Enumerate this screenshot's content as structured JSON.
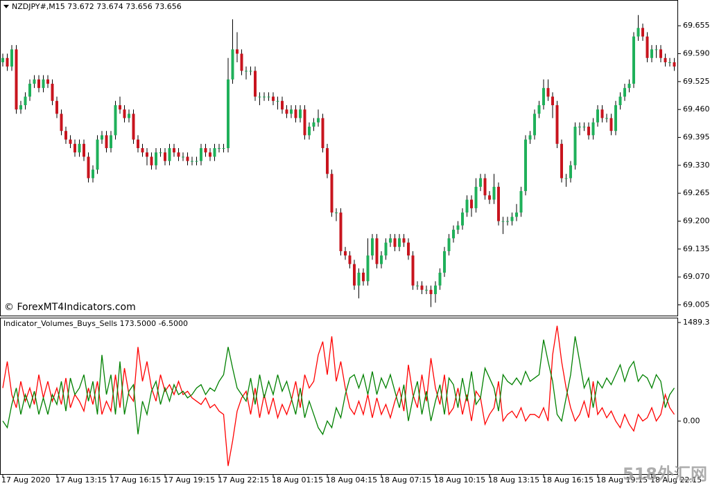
{
  "chart_data": [
    {
      "type": "candlestick",
      "title": "NZDJPY#,M15  73.672 73.674 73.656 73.656",
      "annotation": "© ForexMT4Indicators.com",
      "open": [
        69.57,
        69.58,
        69.56,
        69.6,
        69.46,
        69.47,
        69.49,
        69.52,
        69.53,
        69.51,
        69.53,
        69.52,
        69.48,
        69.45,
        69.41,
        69.39,
        69.38,
        69.36,
        69.38,
        69.35,
        69.3,
        69.32,
        69.39,
        69.4,
        69.37,
        69.4,
        69.47,
        69.46,
        69.44,
        69.45,
        69.39,
        69.37,
        69.36,
        69.35,
        69.33,
        69.36,
        69.36,
        69.34,
        69.37,
        69.36,
        69.35,
        69.35,
        69.34,
        69.34,
        69.34,
        69.37,
        69.36,
        69.35,
        69.37,
        69.37,
        69.37,
        69.53,
        69.6,
        69.59,
        69.55,
        69.55,
        69.55,
        69.49,
        69.49,
        69.49,
        69.49,
        69.48,
        69.48,
        69.46,
        69.45,
        69.46,
        69.44,
        69.46,
        69.4,
        69.42,
        69.43,
        69.44,
        69.37,
        69.31,
        69.22,
        69.22,
        69.13,
        69.12,
        69.1,
        69.05,
        69.08,
        69.06,
        69.12,
        69.16,
        69.1,
        69.12,
        69.15,
        69.16,
        69.14,
        69.16,
        69.15,
        69.12,
        69.05,
        69.05,
        69.04,
        69.04,
        69.03,
        69.05,
        69.08,
        69.13,
        69.16,
        69.18,
        69.19,
        69.22,
        69.25,
        69.23,
        69.28,
        69.3,
        69.26,
        69.25,
        69.28,
        69.2,
        69.2,
        69.2,
        69.21,
        69.22,
        69.27,
        69.39,
        69.4,
        69.45,
        69.47,
        69.51,
        69.49,
        69.47,
        69.38,
        69.3,
        69.3,
        69.33,
        69.42,
        69.42,
        69.42,
        69.4,
        69.43,
        69.46,
        69.44,
        69.44,
        69.41,
        69.47,
        69.49,
        69.51,
        69.52,
        69.63,
        69.65,
        69.63,
        69.58,
        69.6,
        69.6,
        69.58,
        69.57,
        69.57
      ],
      "high": [
        69.59,
        69.59,
        69.61,
        69.61,
        69.48,
        69.5,
        69.53,
        69.54,
        69.54,
        69.54,
        69.54,
        69.53,
        69.49,
        69.46,
        69.42,
        69.4,
        69.39,
        69.39,
        69.39,
        69.36,
        69.33,
        69.4,
        69.41,
        69.41,
        69.41,
        69.48,
        69.49,
        69.47,
        69.46,
        69.46,
        69.4,
        69.38,
        69.37,
        69.36,
        69.37,
        69.37,
        69.37,
        69.38,
        69.38,
        69.37,
        69.36,
        69.36,
        69.35,
        69.35,
        69.38,
        69.38,
        69.37,
        69.38,
        69.38,
        69.38,
        69.58,
        69.67,
        69.64,
        69.6,
        69.56,
        69.56,
        69.56,
        69.5,
        69.5,
        69.5,
        69.5,
        69.49,
        69.49,
        69.47,
        69.47,
        69.47,
        69.47,
        69.47,
        69.43,
        69.44,
        69.46,
        69.45,
        69.38,
        69.32,
        69.23,
        69.23,
        69.14,
        69.13,
        69.11,
        69.09,
        69.09,
        69.16,
        69.17,
        69.17,
        69.13,
        69.16,
        69.17,
        69.17,
        69.17,
        69.17,
        69.16,
        69.13,
        69.06,
        69.06,
        69.05,
        69.05,
        69.06,
        69.09,
        69.14,
        69.17,
        69.19,
        69.2,
        69.23,
        69.26,
        69.26,
        69.3,
        69.31,
        69.31,
        69.27,
        69.31,
        69.29,
        69.21,
        69.21,
        69.22,
        69.24,
        69.28,
        69.4,
        69.41,
        69.46,
        69.48,
        69.53,
        69.53,
        69.5,
        69.48,
        69.39,
        69.31,
        69.34,
        69.43,
        69.43,
        69.43,
        69.43,
        69.44,
        69.47,
        69.47,
        69.45,
        69.45,
        69.48,
        69.5,
        69.52,
        69.53,
        69.64,
        69.68,
        69.66,
        69.64,
        69.61,
        69.61,
        69.61,
        69.59,
        69.58,
        69.58
      ],
      "low": [
        69.56,
        69.55,
        69.55,
        69.45,
        69.45,
        69.46,
        69.48,
        69.51,
        69.5,
        69.5,
        69.51,
        69.47,
        69.44,
        69.4,
        69.38,
        69.37,
        69.35,
        69.35,
        69.34,
        69.29,
        69.29,
        69.31,
        69.38,
        69.36,
        69.36,
        69.39,
        69.45,
        69.43,
        69.43,
        69.38,
        69.36,
        69.35,
        69.33,
        69.32,
        69.32,
        69.35,
        69.33,
        69.33,
        69.35,
        69.34,
        69.34,
        69.33,
        69.33,
        69.33,
        69.33,
        69.35,
        69.34,
        69.34,
        69.36,
        69.36,
        69.36,
        69.52,
        69.57,
        69.54,
        69.53,
        69.54,
        69.48,
        69.47,
        69.48,
        69.48,
        69.47,
        69.46,
        69.45,
        69.44,
        69.44,
        69.43,
        69.43,
        69.39,
        69.39,
        69.41,
        69.42,
        69.36,
        69.3,
        69.21,
        69.2,
        69.12,
        69.11,
        69.09,
        69.04,
        69.02,
        69.05,
        69.05,
        69.11,
        69.09,
        69.09,
        69.11,
        69.14,
        69.13,
        69.13,
        69.14,
        69.11,
        69.04,
        69.04,
        69.03,
        69.03,
        69.0,
        69.01,
        69.04,
        69.07,
        69.12,
        69.15,
        69.17,
        69.18,
        69.21,
        69.21,
        69.22,
        69.27,
        69.25,
        69.24,
        69.24,
        69.19,
        69.17,
        69.19,
        69.19,
        69.2,
        69.21,
        69.26,
        69.38,
        69.39,
        69.44,
        69.46,
        69.48,
        69.44,
        69.37,
        69.29,
        69.28,
        69.29,
        69.32,
        69.4,
        69.41,
        69.39,
        69.39,
        69.42,
        69.43,
        69.43,
        69.4,
        69.4,
        69.46,
        69.48,
        69.5,
        69.51,
        69.62,
        69.62,
        69.57,
        69.57,
        69.58,
        69.57,
        69.56,
        69.56,
        69.55
      ],
      "close": [
        69.58,
        69.56,
        69.6,
        69.46,
        69.47,
        69.49,
        69.52,
        69.53,
        69.51,
        69.53,
        69.52,
        69.48,
        69.45,
        69.41,
        69.39,
        69.38,
        69.36,
        69.38,
        69.35,
        69.3,
        69.32,
        69.39,
        69.4,
        69.37,
        69.4,
        69.47,
        69.46,
        69.44,
        69.45,
        69.39,
        69.37,
        69.36,
        69.35,
        69.33,
        69.36,
        69.36,
        69.34,
        69.37,
        69.36,
        69.35,
        69.35,
        69.34,
        69.34,
        69.34,
        69.37,
        69.36,
        69.35,
        69.37,
        69.37,
        69.37,
        69.53,
        69.6,
        69.59,
        69.55,
        69.55,
        69.55,
        69.49,
        69.49,
        69.49,
        69.49,
        69.48,
        69.48,
        69.46,
        69.45,
        69.46,
        69.44,
        69.46,
        69.4,
        69.42,
        69.43,
        69.44,
        69.37,
        69.31,
        69.22,
        69.22,
        69.13,
        69.12,
        69.1,
        69.05,
        69.08,
        69.06,
        69.12,
        69.16,
        69.1,
        69.12,
        69.15,
        69.16,
        69.14,
        69.16,
        69.15,
        69.12,
        69.05,
        69.05,
        69.04,
        69.04,
        69.03,
        69.05,
        69.08,
        69.13,
        69.16,
        69.18,
        69.19,
        69.22,
        69.25,
        69.23,
        69.28,
        69.3,
        69.26,
        69.25,
        69.28,
        69.2,
        69.2,
        69.2,
        69.21,
        69.22,
        69.27,
        69.39,
        69.4,
        69.45,
        69.47,
        69.51,
        69.49,
        69.47,
        69.38,
        69.3,
        69.3,
        69.33,
        69.42,
        69.42,
        69.42,
        69.4,
        69.43,
        69.46,
        69.44,
        69.44,
        69.41,
        69.47,
        69.49,
        69.51,
        69.52,
        69.63,
        69.65,
        69.63,
        69.58,
        69.6,
        69.6,
        69.58,
        69.57,
        69.57,
        69.56
      ],
      "up_color": "#1fb05a",
      "down_color": "#c8141e",
      "wick_color": "#000000",
      "ylim": [
        68.98,
        69.715
      ],
      "yticks": [
        69.655,
        {
          "value": 69.59,
          "label": "69.590"
        },
        69.525,
        {
          "value": 69.46,
          "label": "69.460"
        },
        69.395,
        {
          "value": 69.33,
          "label": "69.330"
        },
        69.265,
        {
          "value": 69.2,
          "label": "69.200"
        },
        69.135,
        {
          "value": 69.07,
          "label": "69.070"
        },
        69.005
      ]
    },
    {
      "type": "line",
      "title": "Indicator_Volumes_Buys_Sells 173.5000 -6.5000",
      "categories": [
        "17 Aug 2020",
        null,
        null,
        null,
        null,
        null,
        null,
        null,
        null,
        null,
        null,
        null,
        "17 Aug 13:15",
        null,
        null,
        null,
        null,
        null,
        null,
        null,
        null,
        null,
        null,
        null,
        "17 Aug 16:15",
        null,
        null,
        null,
        null,
        null,
        null,
        null,
        null,
        null,
        null,
        null,
        "17 Aug 19:15",
        null,
        null,
        null,
        null,
        null,
        null,
        null,
        null,
        null,
        null,
        null,
        "17 Aug 22:15",
        null,
        null,
        null,
        null,
        null,
        null,
        null,
        null,
        null,
        null,
        null,
        "18 Aug 01:15",
        null,
        null,
        null,
        null,
        null,
        null,
        null,
        null,
        null,
        null,
        null,
        "18 Aug 04:15",
        null,
        null,
        null,
        null,
        null,
        null,
        null,
        null,
        null,
        null,
        null,
        "18 Aug 07:15",
        null,
        null,
        null,
        null,
        null,
        null,
        null,
        null,
        null,
        null,
        null,
        "18 Aug 10:15",
        null,
        null,
        null,
        null,
        null,
        null,
        null,
        null,
        null,
        null,
        null,
        "18 Aug 13:15",
        null,
        null,
        null,
        null,
        null,
        null,
        null,
        null,
        null,
        null,
        null,
        "18 Aug 16:15",
        null,
        null,
        null,
        null,
        null,
        null,
        null,
        null,
        null,
        null,
        null,
        "18 Aug 19:15",
        null,
        null,
        null,
        null,
        null,
        null,
        null,
        null,
        null,
        null,
        null,
        "18 Aug 22:15",
        null,
        null,
        null,
        null,
        null
      ],
      "series": [
        {
          "color": "#ff0000",
          "values": [
            500,
            900,
            400,
            200,
            600,
            300,
            500,
            250,
            700,
            350,
            600,
            300,
            500,
            250,
            650,
            200,
            400,
            300,
            150,
            500,
            250,
            600,
            100,
            300,
            150,
            700,
            200,
            800,
            400,
            300,
            1120,
            600,
            900,
            500,
            300,
            700,
            450,
            550,
            400,
            600,
            400,
            450,
            350,
            300,
            250,
            350,
            200,
            250,
            150,
            100,
            -680,
            -300,
            150,
            350,
            450,
            100,
            500,
            50,
            400,
            100,
            350,
            50,
            250,
            100,
            300,
            600,
            200,
            700,
            500,
            600,
            1000,
            1200,
            700,
            1280,
            600,
            900,
            500,
            200,
            100,
            300,
            100,
            400,
            50,
            350,
            100,
            250,
            50,
            300,
            500,
            150,
            850,
            400,
            200,
            700,
            300,
            950,
            500,
            250,
            700,
            100,
            200,
            500,
            100,
            400,
            0,
            450,
            350,
            -50,
            100,
            200,
            600,
            0,
            100,
            150,
            50,
            200,
            0,
            100,
            100,
            50,
            200,
            0,
            1000,
            1440,
            900,
            500,
            200,
            0,
            100,
            300,
            50,
            600,
            100,
            200,
            50,
            150,
            0,
            -100,
            100,
            -50,
            -150,
            100,
            0,
            50,
            200,
            0,
            100,
            400,
            200,
            100
          ]
        },
        {
          "color": "#008000",
          "values": [
            0,
            -100,
            250,
            500,
            100,
            400,
            200,
            450,
            100,
            350,
            100,
            400,
            250,
            600,
            150,
            650,
            400,
            500,
            700,
            300,
            600,
            100,
            1000,
            400,
            700,
            100,
            900,
            100,
            450,
            550,
            -200,
            300,
            100,
            450,
            600,
            250,
            500,
            300,
            550,
            400,
            450,
            350,
            400,
            500,
            550,
            400,
            500,
            450,
            600,
            700,
            1120,
            800,
            500,
            400,
            300,
            650,
            250,
            700,
            350,
            600,
            400,
            700,
            450,
            600,
            350,
            100,
            500,
            50,
            300,
            100,
            -100,
            -200,
            0,
            -100,
            200,
            50,
            400,
            650,
            700,
            500,
            700,
            400,
            750,
            400,
            650,
            500,
            700,
            450,
            200,
            550,
            0,
            350,
            600,
            100,
            450,
            0,
            300,
            550,
            100,
            650,
            550,
            200,
            650,
            300,
            750,
            250,
            350,
            800,
            650,
            500,
            150,
            700,
            600,
            550,
            650,
            550,
            750,
            600,
            650,
            700,
            1230,
            900,
            600,
            100,
            0,
            350,
            700,
            1280,
            900,
            500,
            650,
            200,
            600,
            500,
            650,
            550,
            700,
            850,
            600,
            800,
            900,
            600,
            700,
            650,
            500,
            700,
            600,
            200,
            400,
            500
          ]
        }
      ],
      "ylim": [
        -802,
        1552
      ],
      "yticks": [
        1489.375,
        {
          "value": 0,
          "label": "0.00"
        }
      ]
    }
  ],
  "watermark": "518外汇网"
}
